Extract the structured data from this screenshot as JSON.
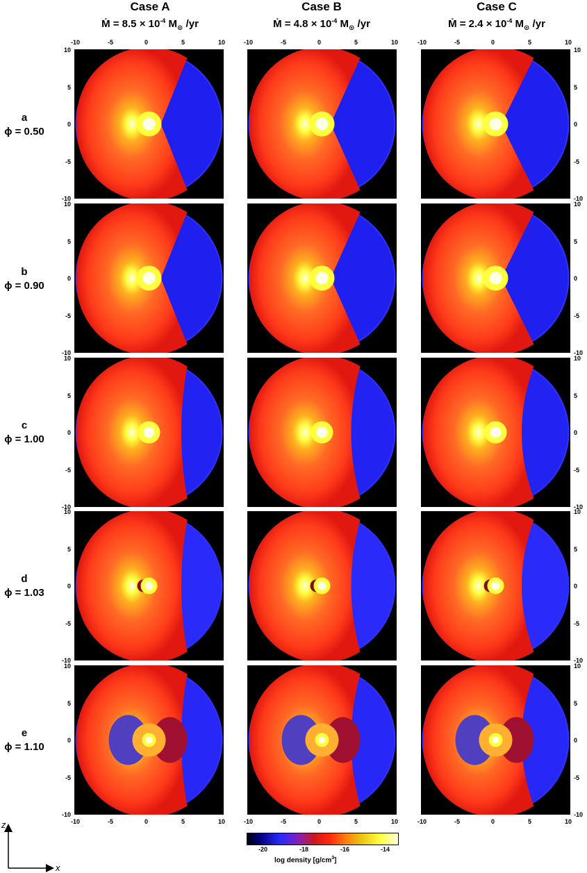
{
  "columns": [
    {
      "case": "Case A",
      "mdot_prefix": "Ṁ = 8.5 × 10",
      "mdot_exp": "-4",
      "mdot_unit": " M",
      "mdot_sun": "⊙",
      "mdot_tail": " /yr"
    },
    {
      "case": "Case B",
      "mdot_prefix": "Ṁ = 4.8 × 10",
      "mdot_exp": "-4",
      "mdot_unit": " M",
      "mdot_sun": "⊙",
      "mdot_tail": " /yr"
    },
    {
      "case": "Case C",
      "mdot_prefix": "Ṁ = 2.4 × 10",
      "mdot_exp": "-4",
      "mdot_unit": " M",
      "mdot_sun": "⊙",
      "mdot_tail": " /yr"
    }
  ],
  "rows": [
    {
      "letter": "a",
      "phi": "ϕ = 0.50"
    },
    {
      "letter": "b",
      "phi": "ϕ = 0.90"
    },
    {
      "letter": "c",
      "phi": "ϕ = 1.00"
    },
    {
      "letter": "d",
      "phi": "ϕ = 1.03"
    },
    {
      "letter": "e",
      "phi": "ϕ = 1.10"
    }
  ],
  "x_ticks": [
    "-10",
    "-5",
    "0",
    "5",
    "10"
  ],
  "y_ticks": [
    "10",
    "5",
    "0",
    "-5",
    "-10"
  ],
  "axes": {
    "z_label": "z",
    "x_label": "x"
  },
  "colorbar": {
    "ticks": [
      "-20",
      "-18",
      "-16",
      "-14"
    ],
    "label": "log density  [g/cm",
    "label_sup": "3",
    "label_end": "]",
    "range": [
      -20,
      -13
    ]
  },
  "colors": {
    "shell_red": "#ff3a1a",
    "core_yellow": "#ffff40",
    "wind_blue": "#2020ee",
    "background": "#000000"
  }
}
